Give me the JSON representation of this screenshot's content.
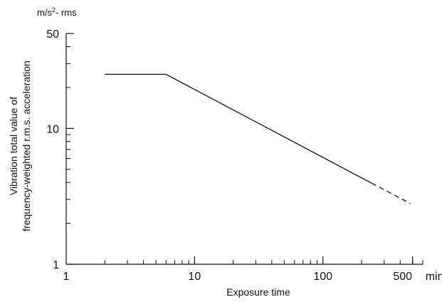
{
  "chart_data": {
    "type": "line",
    "x_scale": "log",
    "y_scale": "log",
    "xlim": [
      1,
      600
    ],
    "ylim": [
      1,
      50
    ],
    "xlabel": "Exposure time",
    "ylabel_line1": "Vibration total value of",
    "ylabel_line2": "frequency-weighted r.m.s. acceleration",
    "y_unit_prefix": "m/s",
    "y_unit_exp": "2",
    "y_unit_suffix": "- rms",
    "x_unit": "min",
    "x_ticks": [
      {
        "value": 1,
        "label": "1"
      },
      {
        "value": 10,
        "label": "10"
      },
      {
        "value": 100,
        "label": "100"
      },
      {
        "value": 500,
        "label": "500"
      }
    ],
    "y_ticks": [
      {
        "value": 1,
        "label": "1"
      },
      {
        "value": 10,
        "label": "10"
      },
      {
        "value": 50,
        "label": "50"
      }
    ],
    "grid": false,
    "series": [
      {
        "style": "solid",
        "points": [
          [
            2,
            25
          ],
          [
            6,
            25
          ],
          [
            240,
            3.95
          ]
        ]
      },
      {
        "style": "dashed",
        "points": [
          [
            240,
            3.95
          ],
          [
            480,
            2.8
          ]
        ]
      }
    ],
    "color": "#111111"
  }
}
